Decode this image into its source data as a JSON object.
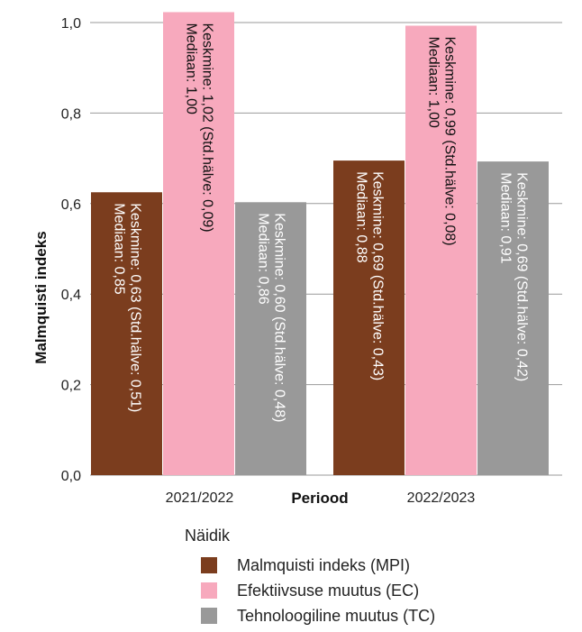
{
  "chart_data": {
    "type": "bar",
    "xlabel": "Periood",
    "ylabel": "Malmquisti indeks",
    "ylim": [
      0,
      1.0
    ],
    "yticks": [
      "0,0",
      "0,2",
      "0,4",
      "0,6",
      "0,8",
      "1,0"
    ],
    "categories": [
      "2021/2022",
      "2022/2023"
    ],
    "grid": true,
    "series": [
      {
        "name": "Malmquisti indeks (MPI)",
        "color": "#7b3d1e",
        "values": [
          0.625,
          0.695
        ],
        "annotations": [
          [
            "Keskmine: 0,63 (Std.hälve: 0,51)",
            "Mediaan: 0,85"
          ],
          [
            "Keskmine: 0,69 (Std.hälve: 0,43)",
            "Mediaan: 0,88"
          ]
        ]
      },
      {
        "name": "Efektiivsuse muutus (EC)",
        "color": "#f7a9bd",
        "values": [
          1.023,
          0.993
        ],
        "annotations": [
          [
            "Keskmine: 1,02 (Std.hälve: 0,09)",
            "Mediaan: 1,00"
          ],
          [
            "Keskmine: 0,99 (Std.hälve: 0,08)",
            "Mediaan: 1,00"
          ]
        ]
      },
      {
        "name": "Tehnoloogiline muutus (TC)",
        "color": "#999999",
        "values": [
          0.603,
          0.693
        ],
        "annotations": [
          [
            "Keskmine: 0,60 (Std.hälve: 0,48)",
            "Mediaan: 0,86"
          ],
          [
            "Keskmine: 0,69 (Std.hälve: 0,42)",
            "Mediaan: 0,91"
          ]
        ]
      }
    ],
    "legend": {
      "title": "Näidik",
      "placement": "bottom"
    }
  }
}
